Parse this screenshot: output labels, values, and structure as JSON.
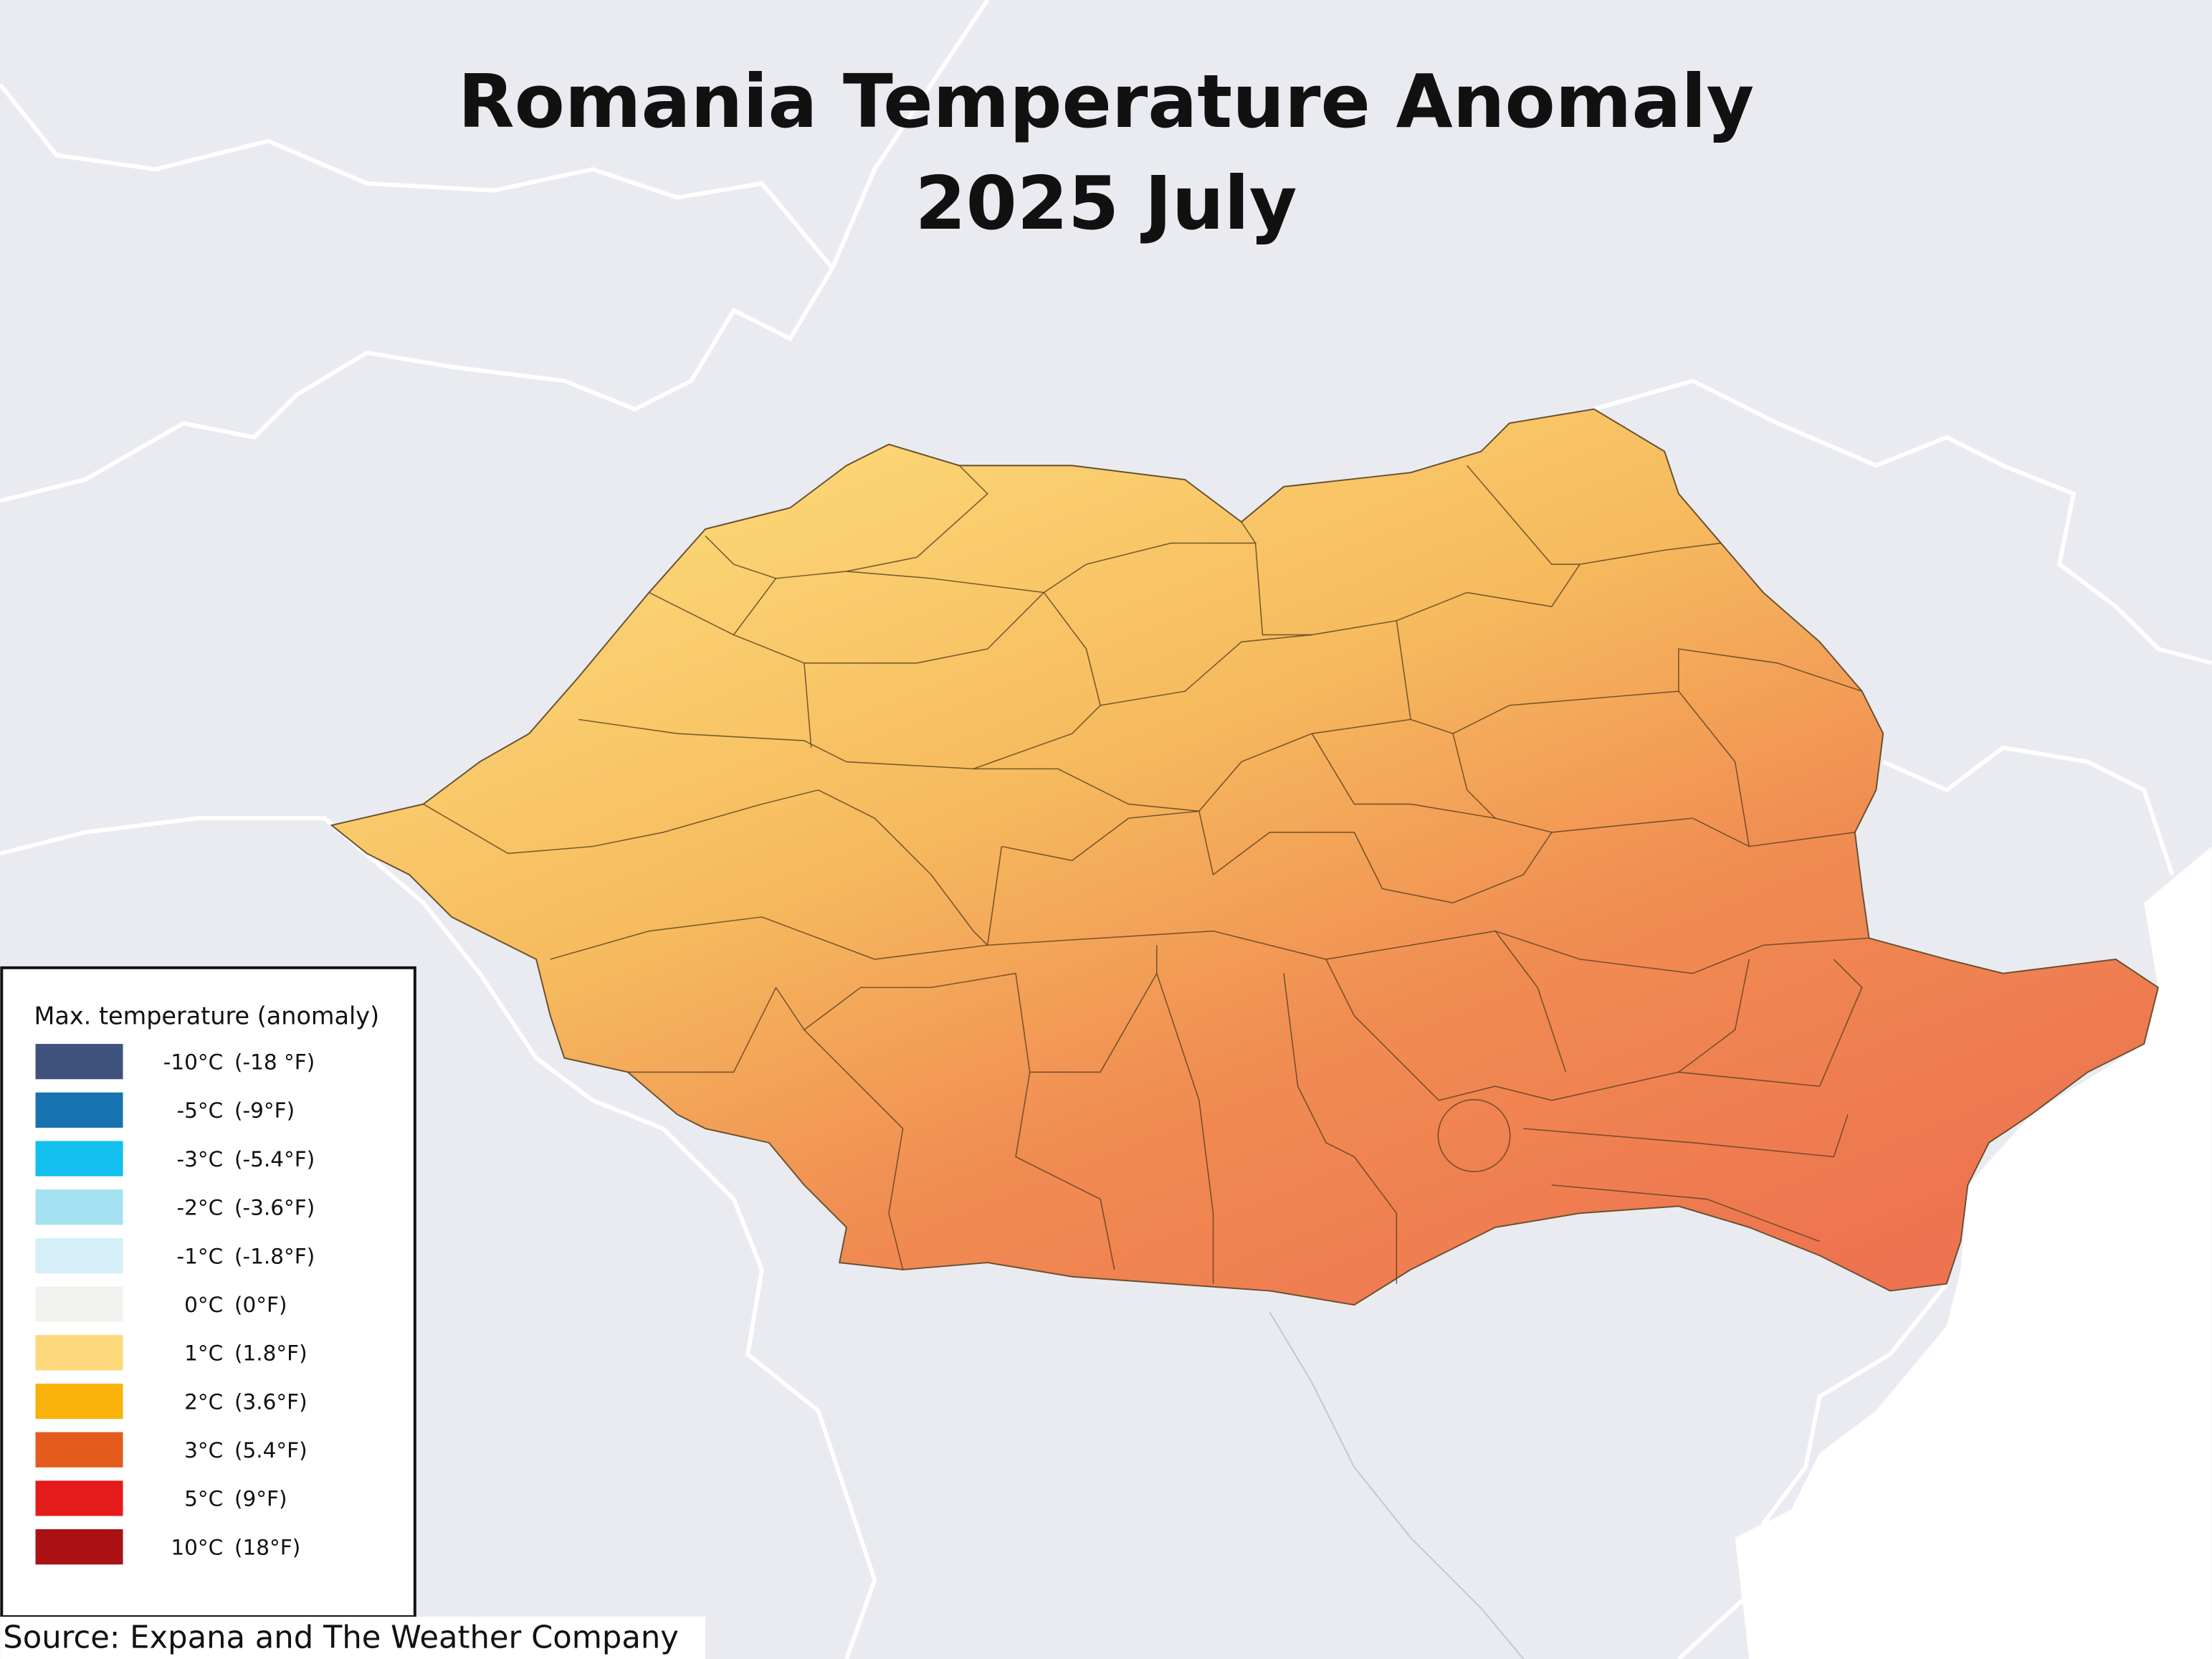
{
  "title": "Romania Temperature Anomaly",
  "subtitle": "2025 July",
  "legend": {
    "title": "Max. temperature (anomaly)",
    "items": [
      {
        "celsius": "-10°C",
        "fahrenheit": "(-18 °F)",
        "color": "#3f527c"
      },
      {
        "celsius": "-5°C",
        "fahrenheit": "(-9°F)",
        "color": "#1673b0"
      },
      {
        "celsius": "-3°C",
        "fahrenheit": "(-5.4°F)",
        "color": "#12bfee"
      },
      {
        "celsius": "-2°C",
        "fahrenheit": "(-3.6°F)",
        "color": "#a4e1f1"
      },
      {
        "celsius": "-1°C",
        "fahrenheit": "(-1.8°F)",
        "color": "#d4eff8"
      },
      {
        "celsius": "0°C",
        "fahrenheit": "(0°F)",
        "color": "#f1f1ed"
      },
      {
        "celsius": "1°C",
        "fahrenheit": "(1.8°F)",
        "color": "#fdd97b"
      },
      {
        "celsius": "2°C",
        "fahrenheit": "(3.6°F)",
        "color": "#f9b20b"
      },
      {
        "celsius": "3°C",
        "fahrenheit": "(5.4°F)",
        "color": "#e55a1d"
      },
      {
        "celsius": "5°C",
        "fahrenheit": "(9°F)",
        "color": "#e51b1b"
      },
      {
        "celsius": "10°C",
        "fahrenheit": "(18°F)",
        "color": "#a91113"
      }
    ]
  },
  "source": "Source: Expana and The Weather Company"
}
